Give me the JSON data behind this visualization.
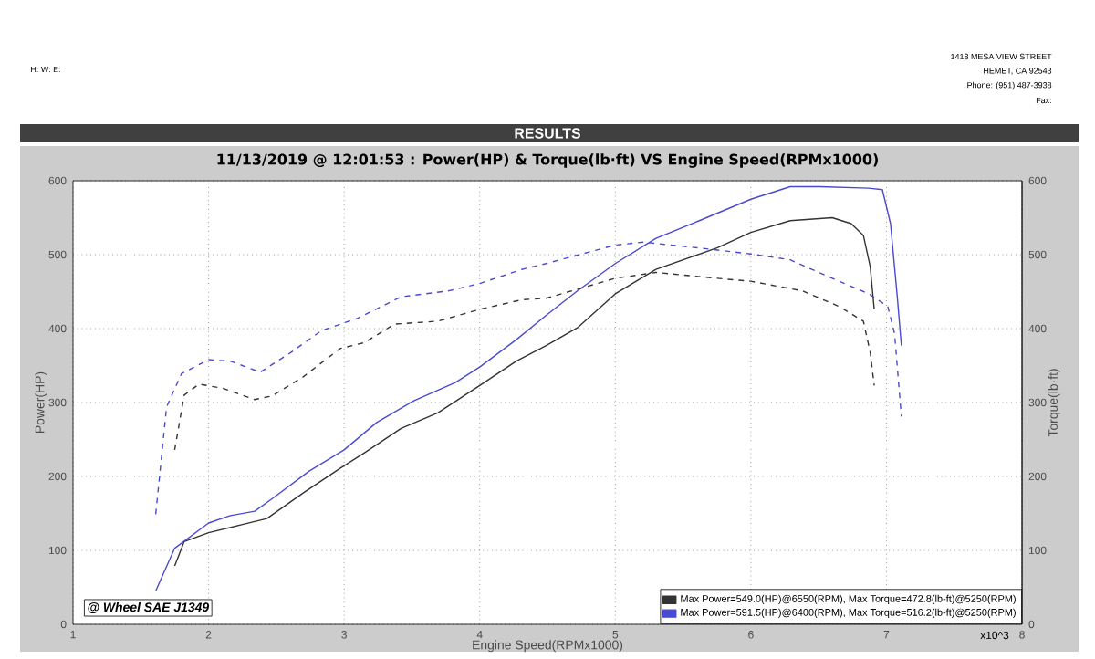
{
  "chart_data": {
    "type": "line",
    "title": "RESULTS",
    "subtitle": "11/13/2019 @ 12:01:53 : Power(HP) & Torque(lb·ft) VS Engine Speed(RPMx1000)",
    "xlabel": "Engine Speed(RPMx1000)",
    "ylabel": "Power(HP)",
    "y2label": "Torque(lb·ft)",
    "annotations": [
      "H:      W:      E:",
      "1418 MESA VIEW STREET",
      "HEMET, CA  92543",
      "Phone: (951) 487-3938",
      "Fax:",
      "@ Wheel SAE J1349",
      "x10^3"
    ],
    "xlim": [
      1,
      8
    ],
    "xticks": [
      1,
      2,
      3,
      4,
      5,
      6,
      7,
      8
    ],
    "ylim": [
      0,
      600
    ],
    "yticks": [
      0,
      100,
      200,
      300,
      400,
      500,
      600
    ],
    "y2lim": [
      0,
      600
    ],
    "y2ticks": [
      0,
      100,
      200,
      300,
      400,
      500,
      600
    ],
    "grid": true,
    "legend": "bottom right",
    "series": [
      {
        "name": "Max Power=549.0(HP)@6550(RPM), Max Torque=472.8(lb-ft)@5250(RPM)",
        "color": "#333333",
        "line_style": "solid",
        "x": [
          1.75,
          1.82,
          2.0,
          2.25,
          2.43,
          2.7,
          2.97,
          3.15,
          3.42,
          3.69,
          4.0,
          4.27,
          4.49,
          4.72,
          5.0,
          5.3,
          5.75,
          6.0,
          6.29,
          6.6,
          6.74,
          6.83,
          6.88,
          6.91
        ],
        "values": [
          79,
          112,
          124,
          135,
          143,
          178,
          211,
          232,
          265,
          286,
          323,
          356,
          377,
          401,
          447,
          480,
          509,
          530,
          546,
          550,
          542,
          526,
          484,
          426
        ]
      },
      {
        "name": "Max Power=591.5(HP)@6400(RPM), Max Torque=516.2(lb-ft)@5250(RPM)",
        "color": "#4a4ad0",
        "line_style": "solid",
        "x": [
          1.61,
          1.75,
          2.0,
          2.16,
          2.34,
          2.47,
          2.74,
          3.0,
          3.24,
          3.51,
          3.82,
          4.0,
          4.27,
          4.49,
          4.72,
          5.0,
          5.3,
          5.62,
          6.0,
          6.29,
          6.51,
          6.87,
          6.97,
          7.03,
          7.08,
          7.11
        ],
        "values": [
          45,
          103,
          137,
          147,
          153,
          170,
          207,
          236,
          273,
          302,
          327,
          348,
          385,
          418,
          451,
          488,
          522,
          546,
          575,
          592,
          592,
          590,
          588,
          542,
          443,
          377
        ]
      },
      {
        "color": "#333333",
        "line_style": "dashed",
        "axis": "y2",
        "x": [
          1.75,
          1.82,
          1.93,
          2.11,
          2.34,
          2.47,
          2.7,
          2.97,
          3.15,
          3.37,
          3.69,
          4.0,
          4.31,
          4.49,
          5.0,
          5.3,
          5.75,
          6.0,
          6.38,
          6.65,
          6.83,
          6.88,
          6.91
        ],
        "values": [
          236,
          310,
          325,
          319,
          304,
          309,
          335,
          373,
          381,
          406,
          410,
          426,
          439,
          441,
          468,
          476,
          468,
          464,
          451,
          430,
          410,
          368,
          323
        ]
      },
      {
        "color": "#4a4ad0",
        "line_style": "dashed",
        "axis": "y2",
        "x": [
          1.61,
          1.69,
          1.8,
          2.0,
          2.16,
          2.38,
          2.61,
          2.83,
          3.1,
          3.42,
          3.77,
          4.0,
          4.31,
          4.49,
          5.0,
          5.21,
          5.62,
          6.0,
          6.29,
          6.6,
          6.87,
          7.01,
          7.06,
          7.11
        ],
        "values": [
          149,
          294,
          339,
          358,
          356,
          341,
          368,
          397,
          414,
          443,
          451,
          461,
          480,
          488,
          513,
          517,
          509,
          501,
          493,
          468,
          447,
          430,
          393,
          281
        ]
      }
    ]
  }
}
